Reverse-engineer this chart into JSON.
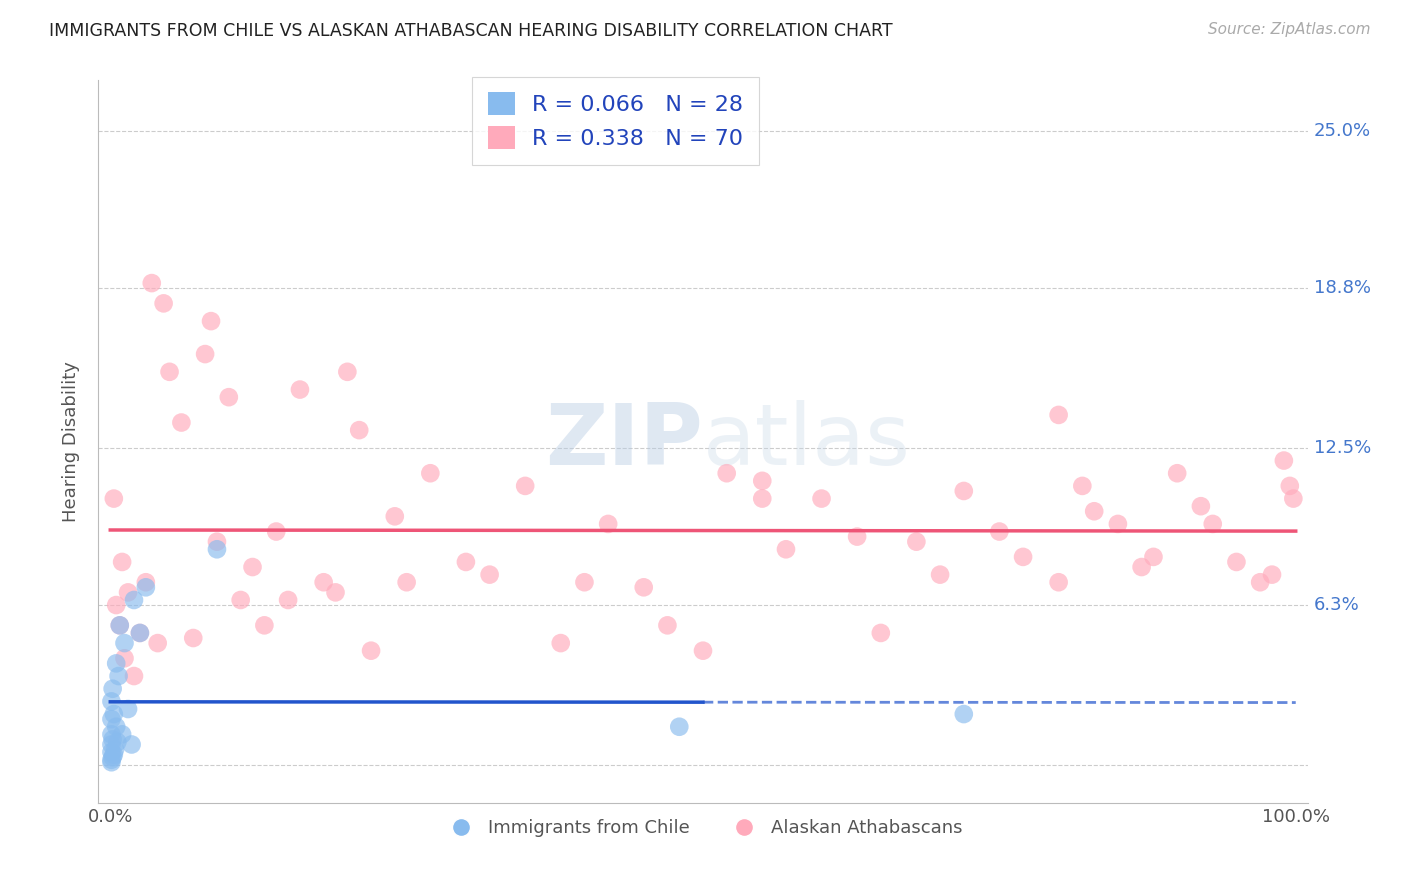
{
  "title": "IMMIGRANTS FROM CHILE VS ALASKAN ATHABASCAN HEARING DISABILITY CORRELATION CHART",
  "source": "Source: ZipAtlas.com",
  "ylabel": "Hearing Disability",
  "watermark": "ZIPatlas",
  "background_color": "#ffffff",
  "chile_color": "#88bbee",
  "athabascan_color": "#ffaabb",
  "chile_line_color": "#2255cc",
  "athabascan_line_color": "#ee5577",
  "grid_color": "#cccccc",
  "chile_R": 0.066,
  "chile_N": 28,
  "athabascan_R": 0.338,
  "athabascan_N": 70,
  "right_label_color": "#4477cc",
  "yticks": [
    0.0,
    6.3,
    12.5,
    18.8,
    25.0
  ],
  "ytick_labels": [
    "0%",
    "6.3%",
    "12.5%",
    "18.8%",
    "25.0%"
  ],
  "xlim": [
    -1,
    101
  ],
  "ylim": [
    -1.5,
    27
  ],
  "chile_scatter_x": [
    0.1,
    0.1,
    0.1,
    0.1,
    0.1,
    0.1,
    0.1,
    0.2,
    0.2,
    0.2,
    0.3,
    0.3,
    0.4,
    0.5,
    0.5,
    0.6,
    0.7,
    0.8,
    1.0,
    1.2,
    1.5,
    1.8,
    2.0,
    2.5,
    3.0,
    9.0,
    48.0,
    72.0
  ],
  "chile_scatter_y": [
    0.1,
    0.2,
    0.5,
    0.8,
    1.2,
    1.8,
    2.5,
    0.3,
    1.0,
    3.0,
    0.4,
    2.0,
    0.6,
    1.5,
    4.0,
    0.9,
    3.5,
    5.5,
    1.2,
    4.8,
    2.2,
    0.8,
    6.5,
    5.2,
    7.0,
    8.5,
    1.5,
    2.0
  ],
  "athabascan_scatter_x": [
    0.3,
    0.5,
    0.8,
    1.0,
    1.2,
    1.5,
    2.0,
    2.5,
    3.0,
    4.0,
    5.0,
    6.0,
    7.0,
    8.0,
    9.0,
    10.0,
    11.0,
    12.0,
    13.0,
    14.0,
    15.0,
    16.0,
    18.0,
    19.0,
    21.0,
    22.0,
    24.0,
    25.0,
    27.0,
    30.0,
    32.0,
    35.0,
    38.0,
    40.0,
    42.0,
    45.0,
    47.0,
    50.0,
    52.0,
    55.0,
    57.0,
    60.0,
    63.0,
    65.0,
    68.0,
    70.0,
    72.0,
    75.0,
    77.0,
    80.0,
    82.0,
    83.0,
    85.0,
    87.0,
    88.0,
    90.0,
    92.0,
    93.0,
    95.0,
    97.0,
    98.0,
    99.0,
    99.5,
    99.8,
    3.5,
    4.5,
    8.5,
    20.0,
    55.0,
    80.0
  ],
  "athabascan_scatter_y": [
    10.5,
    6.3,
    5.5,
    8.0,
    4.2,
    6.8,
    3.5,
    5.2,
    7.2,
    4.8,
    15.5,
    13.5,
    5.0,
    16.2,
    8.8,
    14.5,
    6.5,
    7.8,
    5.5,
    9.2,
    6.5,
    14.8,
    7.2,
    6.8,
    13.2,
    4.5,
    9.8,
    7.2,
    11.5,
    8.0,
    7.5,
    11.0,
    4.8,
    7.2,
    9.5,
    7.0,
    5.5,
    4.5,
    11.5,
    10.5,
    8.5,
    10.5,
    9.0,
    5.2,
    8.8,
    7.5,
    10.8,
    9.2,
    8.2,
    7.2,
    11.0,
    10.0,
    9.5,
    7.8,
    8.2,
    11.5,
    10.2,
    9.5,
    8.0,
    7.2,
    7.5,
    12.0,
    11.0,
    10.5,
    19.0,
    18.2,
    17.5,
    15.5,
    11.2,
    13.8
  ]
}
